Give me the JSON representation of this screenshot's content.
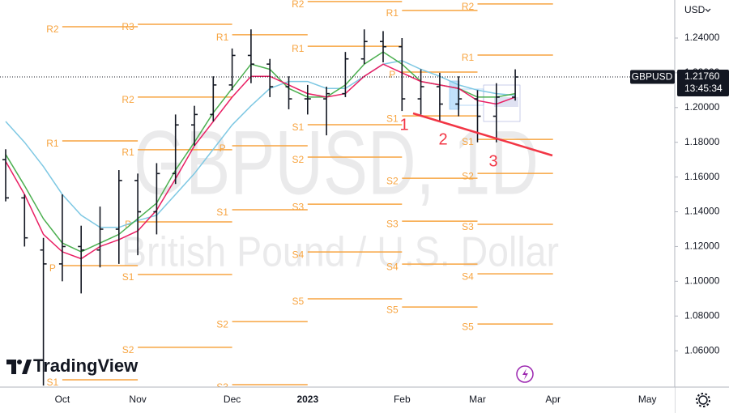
{
  "chart_data": {
    "type": "ohlc",
    "currency": "USD",
    "watermark": "GBPUSD, 1D",
    "description": "British Pound / U.S. Dollar",
    "brand": "TradingView",
    "categories": [
      null,
      null,
      null,
      "Oct",
      null,
      null,
      null,
      "Nov",
      null,
      null,
      null,
      null,
      "Dec",
      null,
      null,
      null,
      "2023",
      null,
      null,
      null,
      null,
      "Feb",
      null,
      null,
      null,
      "Mar",
      null,
      null,
      null,
      "Apr",
      null,
      null,
      null,
      null,
      "May",
      null
    ],
    "ohlc": {
      "color": "#131722",
      "open": [
        1.17,
        1.148,
        1.118,
        1.11,
        1.12,
        1.118,
        1.13,
        1.158,
        1.14,
        1.162,
        1.19,
        1.196,
        1.213,
        1.23,
        1.225,
        1.212,
        1.205,
        1.205,
        1.208,
        1.228,
        1.238,
        1.235,
        1.205,
        1.212,
        1.202,
        1.205,
        1.195,
        1.206,
        null,
        null,
        null,
        null,
        null,
        null,
        null,
        null
      ],
      "high": [
        1.176,
        1.15,
        1.125,
        1.15,
        1.132,
        1.143,
        1.164,
        1.162,
        1.168,
        1.196,
        1.201,
        1.218,
        1.234,
        1.245,
        1.228,
        1.218,
        1.213,
        1.212,
        1.232,
        1.245,
        1.244,
        1.24,
        1.222,
        1.22,
        1.218,
        1.21,
        1.214,
        1.222,
        null,
        null,
        null,
        null,
        null,
        null,
        null,
        null
      ],
      "low": [
        1.146,
        1.12,
        1.04,
        1.1,
        1.093,
        1.108,
        1.11,
        1.115,
        1.127,
        1.156,
        1.178,
        1.192,
        1.21,
        1.214,
        1.206,
        1.199,
        1.196,
        1.184,
        1.206,
        1.225,
        1.226,
        1.198,
        1.196,
        1.192,
        1.195,
        1.18,
        1.18,
        1.204,
        null,
        null,
        null,
        null,
        null,
        null,
        null,
        null
      ],
      "close": [
        1.148,
        1.125,
        1.11,
        1.12,
        1.118,
        1.13,
        1.158,
        1.14,
        1.162,
        1.19,
        1.196,
        1.213,
        1.23,
        1.225,
        1.212,
        1.205,
        1.205,
        1.208,
        1.228,
        1.238,
        1.235,
        1.205,
        1.212,
        1.202,
        1.205,
        1.195,
        1.206,
        1.2176,
        null,
        null,
        null,
        null,
        null,
        null,
        null,
        null
      ]
    },
    "series": [
      {
        "color": "#7ec8e3",
        "values": [
          1.192,
          1.18,
          1.166,
          1.15,
          1.138,
          1.131,
          1.131,
          1.135,
          1.138,
          1.15,
          1.162,
          1.176,
          1.19,
          1.201,
          1.211,
          1.215,
          1.215,
          1.211,
          1.211,
          1.218,
          1.225,
          1.227,
          1.222,
          1.218,
          1.213,
          1.21,
          1.208,
          1.207,
          null,
          null,
          null,
          null,
          null,
          null,
          null,
          null
        ]
      },
      {
        "color": "#4caf50",
        "values": [
          1.173,
          1.155,
          1.136,
          1.122,
          1.117,
          1.122,
          1.127,
          1.136,
          1.145,
          1.164,
          1.18,
          1.197,
          1.211,
          1.225,
          1.222,
          1.211,
          1.206,
          1.206,
          1.213,
          1.225,
          1.232,
          1.225,
          1.215,
          1.213,
          1.211,
          1.206,
          1.206,
          1.208,
          null,
          null,
          null,
          null,
          null,
          null,
          null,
          null
        ]
      },
      {
        "color": "#e91e63",
        "values": [
          1.169,
          1.15,
          1.127,
          1.117,
          1.113,
          1.12,
          1.124,
          1.129,
          1.141,
          1.159,
          1.178,
          1.192,
          1.206,
          1.218,
          1.218,
          1.213,
          1.208,
          1.206,
          1.208,
          1.218,
          1.225,
          1.22,
          1.215,
          1.213,
          1.211,
          1.204,
          1.202,
          1.206,
          null,
          null,
          null,
          null,
          null,
          null,
          null,
          null
        ]
      }
    ],
    "pivot_color": "#f7a440",
    "pivots": [
      [
        {
          "label": "R2",
          "value": 1.2465
        },
        {
          "label": "R1",
          "value": 1.1808
        },
        {
          "label": "P",
          "value": 1.109
        },
        {
          "label": "S1",
          "value": 1.0433
        }
      ],
      [
        {
          "label": "R3",
          "value": 1.2479
        },
        {
          "label": "R2",
          "value": 1.206
        },
        {
          "label": "R1",
          "value": 1.1757
        },
        {
          "label": "P",
          "value": 1.1342
        },
        {
          "label": "S1",
          "value": 1.1039
        },
        {
          "label": "S2",
          "value": 1.062
        }
      ],
      [
        {
          "label": "R1",
          "value": 1.2419
        },
        {
          "label": "P",
          "value": 1.178
        },
        {
          "label": "S1",
          "value": 1.1412
        },
        {
          "label": "S2",
          "value": 1.0768
        },
        {
          "label": "S3",
          "value": 1.0405
        }
      ],
      [
        {
          "label": "R2",
          "value": 1.261
        },
        {
          "label": "R1",
          "value": 1.2353
        },
        {
          "label": "S1",
          "value": 1.1901
        },
        {
          "label": "S2",
          "value": 1.1715
        },
        {
          "label": "S3",
          "value": 1.1444
        },
        {
          "label": "S4",
          "value": 1.1169
        },
        {
          "label": "S5",
          "value": 1.0899
        }
      ],
      [
        {
          "label": "R1",
          "value": 1.2559
        },
        {
          "label": "P",
          "value": 1.2204
        },
        {
          "label": "S1",
          "value": 1.1952
        },
        {
          "label": "S2",
          "value": 1.1593
        },
        {
          "label": "S3",
          "value": 1.1346
        },
        {
          "label": "S4",
          "value": 1.1099
        },
        {
          "label": "S5",
          "value": 1.0852
        }
      ],
      [
        {
          "label": "R2",
          "value": 1.2596
        },
        {
          "label": "R1",
          "value": 1.2302
        },
        {
          "label": "S1",
          "value": 1.1817
        },
        {
          "label": "S2",
          "value": 1.1621
        },
        {
          "label": "S3",
          "value": 1.1328
        },
        {
          "label": "S4",
          "value": 1.1043
        },
        {
          "label": "S5",
          "value": 1.0754
        }
      ]
    ],
    "annotations": [
      "1",
      "2",
      "3"
    ],
    "ylim": [
      1.0391,
      1.2619
    ],
    "yticks": [
      {
        "value": 1.06,
        "label": "1.06000"
      },
      {
        "value": 1.08,
        "label": "1.08000"
      },
      {
        "value": 1.1,
        "label": "1.10000"
      },
      {
        "value": 1.12,
        "label": "1.12000"
      },
      {
        "value": 1.14,
        "label": "1.14000"
      },
      {
        "value": 1.16,
        "label": "1.16000"
      },
      {
        "value": 1.18,
        "label": "1.18000"
      },
      {
        "value": 1.2,
        "label": "1.20000"
      },
      {
        "value": 1.22,
        "label": "1.22000"
      },
      {
        "value": 1.24,
        "label": "1.24000"
      }
    ],
    "grid": false,
    "symbol": "GBPUSD",
    "last_price": {
      "value": 1.2176,
      "label": "1.21760"
    },
    "countdown": "13:45:34"
  }
}
